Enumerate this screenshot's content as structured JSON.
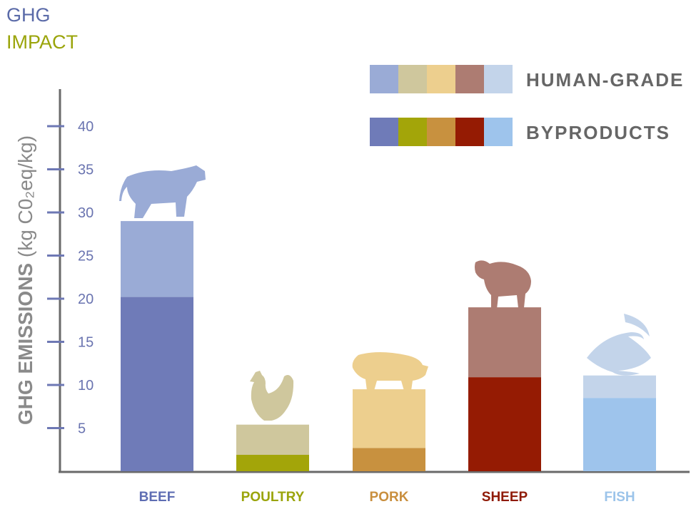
{
  "header": {
    "line1": "GHG",
    "line2": "IMPACT"
  },
  "chart_data": {
    "type": "bar",
    "stacked": true,
    "ylabel_bold": "GHG EMISSIONS",
    "ylabel_units": "(kg C0₂eq/kg)",
    "ylim": [
      0,
      46
    ],
    "yticks": [
      5,
      10,
      15,
      20,
      25,
      30,
      35,
      40
    ],
    "categories": [
      "BEEF",
      "POULTRY",
      "PORK",
      "SHEEP",
      "FISH"
    ],
    "category_colors": [
      "#5e6db3",
      "#9aa40a",
      "#c98f3e",
      "#8f1a06",
      "#9cc4ea"
    ],
    "series": [
      {
        "name": "BYPRODUCTS",
        "values": [
          20.2,
          1.9,
          2.7,
          10.9,
          8.5
        ],
        "colors": [
          "#6f7bb8",
          "#a3a509",
          "#c8913f",
          "#951b03",
          "#9ec4ec"
        ]
      },
      {
        "name": "HUMAN-GRADE",
        "values": [
          8.8,
          3.5,
          6.8,
          8.1,
          2.6
        ],
        "colors": [
          "#9aabd6",
          "#cfc79d",
          "#edcf8e",
          "#ad7c72",
          "#c3d4ea"
        ]
      }
    ],
    "icons": [
      "cow-icon",
      "chicken-icon",
      "pig-icon",
      "sheep-icon",
      "fish-icon"
    ],
    "grid": false,
    "legend_position": "top-right"
  }
}
